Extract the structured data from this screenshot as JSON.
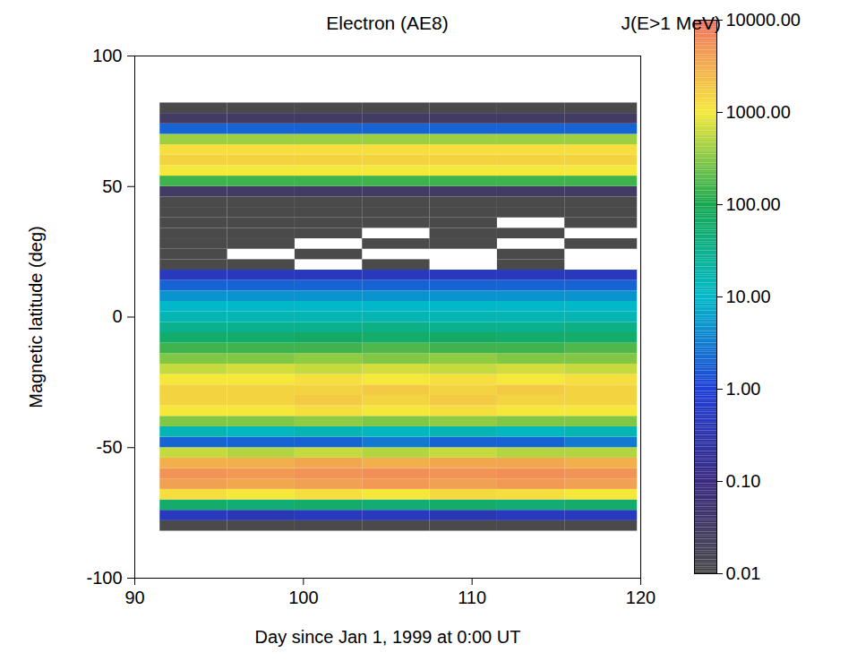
{
  "chart_data": {
    "type": "heatmap",
    "title": "Electron (AE8)",
    "x_label": "Day since Jan 1, 1999 at 0:00 UT",
    "y_label": "Magnetic latitude (deg)",
    "xlim": [
      90,
      120
    ],
    "xticks": [
      90,
      100,
      110,
      120
    ],
    "ylim": [
      -100,
      100
    ],
    "yticks": [
      -100,
      -50,
      0,
      50,
      100
    ],
    "x_edges": [
      91.5,
      95.5,
      99.5,
      103.5,
      107.5,
      111.5,
      115.5,
      119.8
    ],
    "y_edges": [
      -82,
      -78,
      -74,
      -70,
      -66,
      -62,
      -58,
      -54,
      -50,
      -46,
      -42,
      -38,
      -34,
      -30,
      -26,
      -22,
      -18,
      -14,
      -10,
      -6,
      -2,
      2,
      6,
      10,
      14,
      18,
      22,
      26,
      30,
      34,
      38,
      42,
      46,
      50,
      54,
      58,
      62,
      66,
      70,
      74,
      78,
      82
    ],
    "cells": [
      [
        0.01,
        0.01,
        0.01,
        0.01,
        0.01,
        0.01,
        0.01
      ],
      [
        0.5,
        0.4,
        0.5,
        0.5,
        0.4,
        0.5,
        0.5
      ],
      [
        60,
        50,
        60,
        50,
        60,
        50,
        60
      ],
      [
        1200,
        1000,
        1200,
        1000,
        1300,
        1200,
        1000
      ],
      [
        4000,
        3500,
        4000,
        4500,
        4000,
        4500,
        4000
      ],
      [
        5000,
        4500,
        5000,
        5500,
        5000,
        5500,
        5000
      ],
      [
        3000,
        3000,
        3500,
        3000,
        3500,
        3500,
        3000
      ],
      [
        600,
        500,
        600,
        500,
        600,
        500,
        500
      ],
      [
        2,
        2,
        2,
        3,
        2,
        2,
        3
      ],
      [
        15,
        12,
        15,
        12,
        15,
        12,
        15
      ],
      [
        300,
        300,
        350,
        300,
        350,
        300,
        300
      ],
      [
        1000,
        1000,
        1200,
        1000,
        1200,
        1000,
        1000
      ],
      [
        1500,
        1500,
        1800,
        1500,
        1800,
        1500,
        1500
      ],
      [
        1500,
        1500,
        1500,
        1800,
        1500,
        1800,
        1500
      ],
      [
        1000,
        1000,
        1200,
        1000,
        1200,
        1000,
        1200
      ],
      [
        600,
        700,
        600,
        700,
        600,
        700,
        600
      ],
      [
        300,
        300,
        350,
        300,
        350,
        300,
        300
      ],
      [
        150,
        150,
        150,
        180,
        150,
        150,
        180
      ],
      [
        60,
        60,
        70,
        60,
        70,
        60,
        60
      ],
      [
        30,
        30,
        30,
        35,
        30,
        30,
        35
      ],
      [
        15,
        15,
        15,
        15,
        15,
        15,
        15
      ],
      [
        10,
        10,
        10,
        10,
        10,
        10,
        10
      ],
      [
        5,
        5,
        5,
        5,
        5,
        5,
        5
      ],
      [
        2,
        2,
        2,
        2,
        2,
        2,
        2
      ],
      [
        0.5,
        0.5,
        0.5,
        0.5,
        0.5,
        0.5,
        0.5
      ],
      [
        0.01,
        0.01,
        null,
        0.01,
        null,
        0.01,
        null
      ],
      [
        0.01,
        null,
        0.01,
        null,
        null,
        0.01,
        null
      ],
      [
        0.01,
        0.01,
        null,
        0.01,
        0.01,
        null,
        0.01
      ],
      [
        0.01,
        0.01,
        0.01,
        null,
        0.01,
        0.01,
        null
      ],
      [
        0.01,
        0.01,
        0.01,
        0.01,
        0.01,
        null,
        0.01
      ],
      [
        0.01,
        0.01,
        0.01,
        0.01,
        0.01,
        0.01,
        0.01
      ],
      [
        0.01,
        0.01,
        0.01,
        0.01,
        0.01,
        0.01,
        0.01
      ],
      [
        0.03,
        0.03,
        0.03,
        0.03,
        0.03,
        0.03,
        0.03
      ],
      [
        150,
        150,
        150,
        150,
        150,
        150,
        150
      ],
      [
        1000,
        1000,
        1000,
        1000,
        1000,
        1000,
        1000
      ],
      [
        1500,
        1500,
        1500,
        1500,
        1500,
        1500,
        1500
      ],
      [
        1200,
        1200,
        1200,
        1200,
        1200,
        1200,
        1200
      ],
      [
        400,
        400,
        400,
        400,
        400,
        400,
        400
      ],
      [
        2,
        2,
        2,
        2,
        2,
        2,
        2
      ],
      [
        0.03,
        0.03,
        0.03,
        0.03,
        0.03,
        0.03,
        0.03
      ],
      [
        0.01,
        0.01,
        0.01,
        0.01,
        0.01,
        0.01,
        0.01
      ]
    ],
    "colorbar": {
      "label": "J(E>1 MeV)",
      "log": true,
      "lim": [
        0.01,
        10000
      ],
      "ticks": [
        {
          "value": 10000,
          "label": "10000.00"
        },
        {
          "value": 1000,
          "label": "1000.00"
        },
        {
          "value": 100,
          "label": "100.00"
        },
        {
          "value": 10,
          "label": "10.00"
        },
        {
          "value": 1,
          "label": "1.00"
        },
        {
          "value": 0.1,
          "label": "0.10"
        },
        {
          "value": 0.01,
          "label": "0.01"
        }
      ],
      "colors": [
        "#4a4a4a",
        "#3a2a80",
        "#2040d8",
        "#00b8c8",
        "#18a850",
        "#f5e83a",
        "#f07060"
      ]
    }
  }
}
